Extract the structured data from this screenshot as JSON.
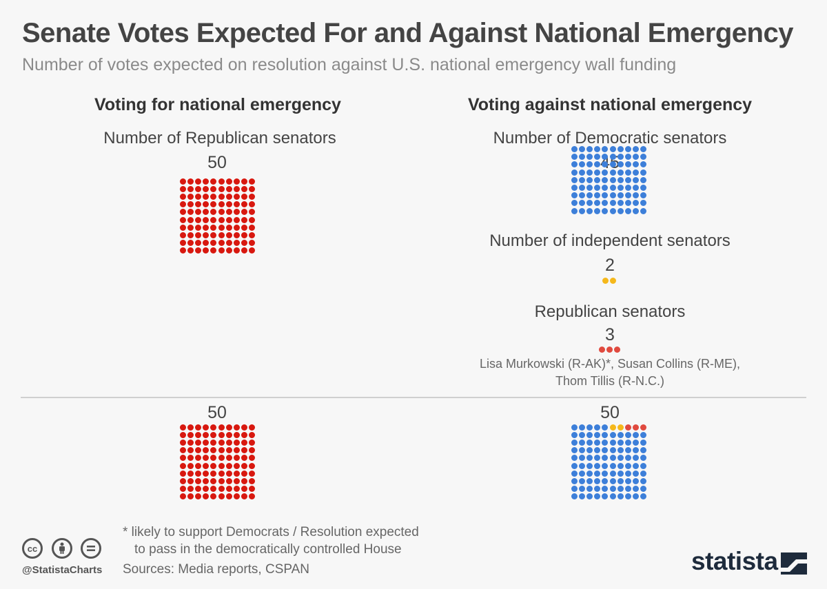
{
  "title": "Senate Votes Expected For and Against National Emergency",
  "subtitle": "Number of votes expected on resolution against U.S. national emergency wall funding",
  "columns": {
    "for_heading": "Voting for national emergency",
    "against_heading": "Voting against national emergency"
  },
  "groups": {
    "rep_for_label": "Number of Republican senators",
    "rep_for_count": "50",
    "dem_label": "Number of Democratic senators",
    "dem_count": "45",
    "ind_label": "Number of independent senators",
    "ind_count": "2",
    "rep_against_label": "Republican senators",
    "rep_against_count": "3",
    "names_line1": "Lisa Murkowski (R-AK)*, Susan Collins (R-ME),",
    "names_line2": "Thom Tillis (R-N.C.)"
  },
  "totals": {
    "for_total": "50",
    "against_total": "50"
  },
  "footnote": {
    "line1": "* likely to support Democrats / Resolution expected",
    "line2": "to pass in the democratically controlled House"
  },
  "source": "Sources: Media reports, CSPAN",
  "handle": "@StatistaCharts",
  "logo_text": "statista",
  "colors": {
    "republican": "#d8180f",
    "democratic": "#3d7fd9",
    "independent": "#f5b81b",
    "republican_against": "#e04a3f"
  },
  "chart_data": {
    "type": "waffle",
    "title": "Senate Votes Expected For and Against National Emergency",
    "series": [
      {
        "name": "Voting for national emergency",
        "segments": [
          {
            "name": "Republican senators",
            "value": 50
          }
        ]
      },
      {
        "name": "Voting against national emergency",
        "segments": [
          {
            "name": "Democratic senators",
            "value": 45
          },
          {
            "name": "Independent senators",
            "value": 2
          },
          {
            "name": "Republican senators",
            "value": 3
          }
        ]
      }
    ]
  }
}
